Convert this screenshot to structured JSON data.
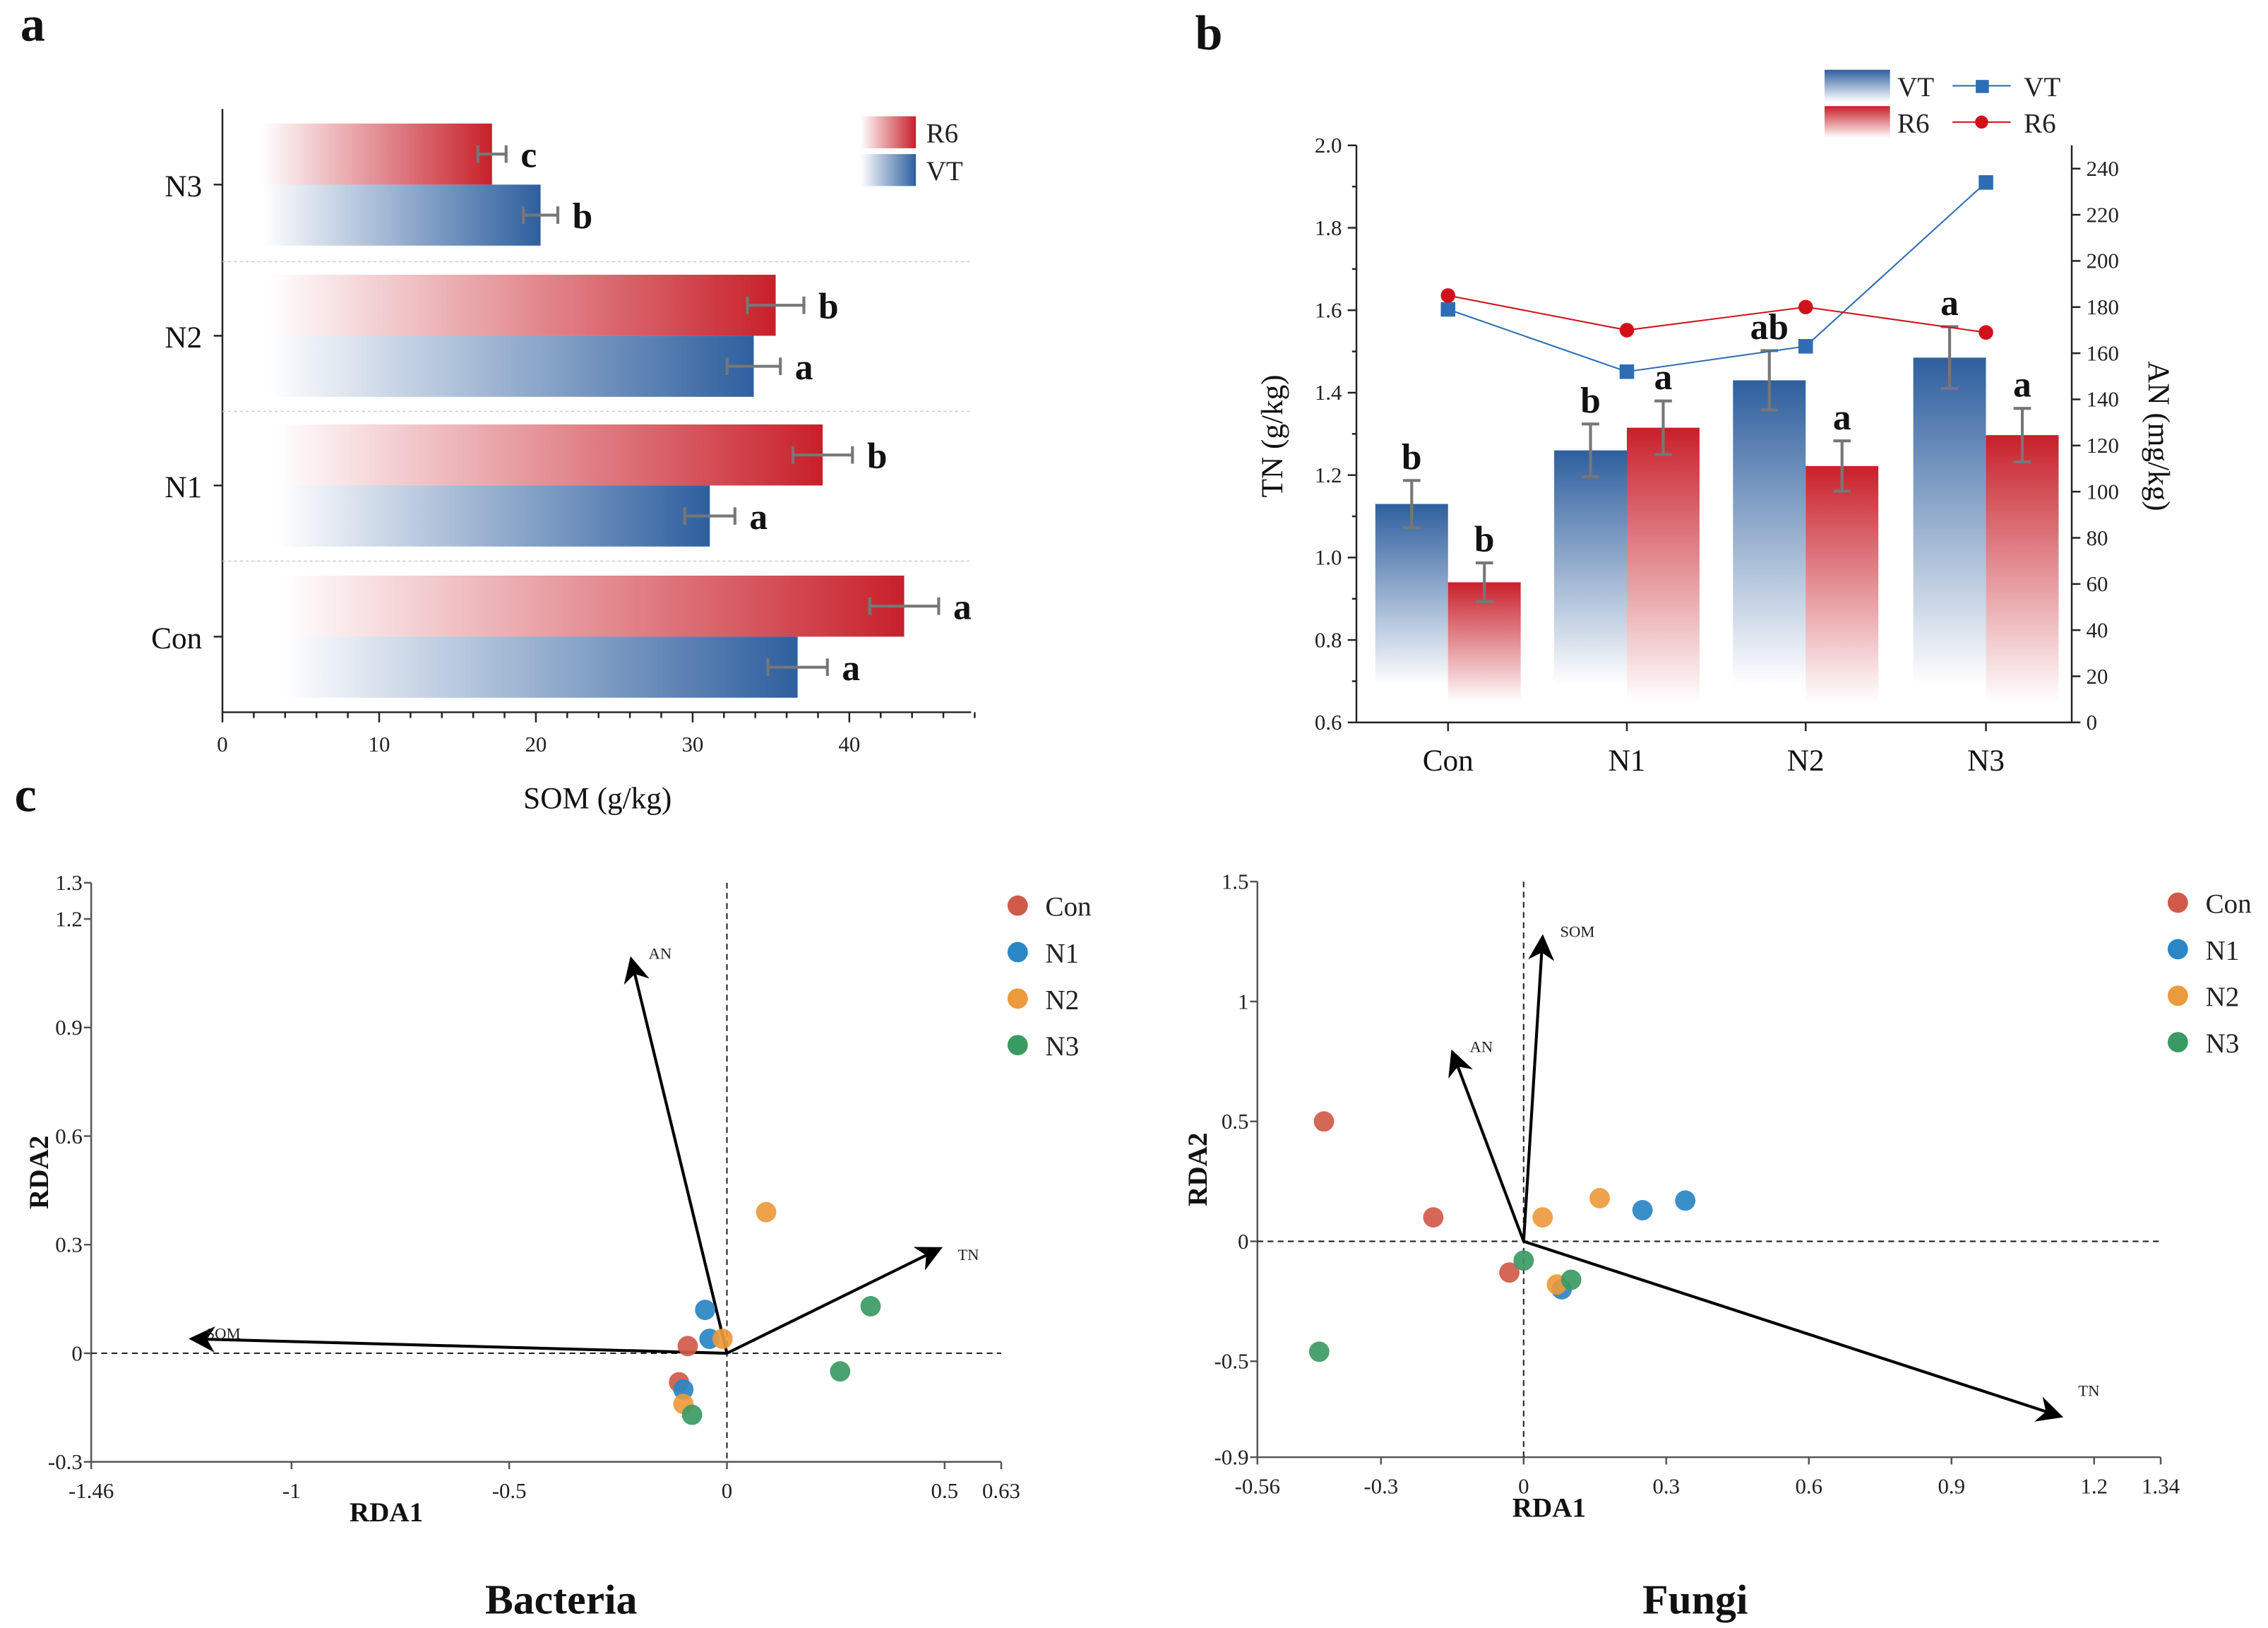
{
  "chart_data": [
    {
      "panel": "a",
      "type": "bar",
      "orientation": "horizontal",
      "xlabel": "SOM (g/kg)",
      "xlim": [
        0,
        48
      ],
      "xticks": [
        0,
        10,
        20,
        30,
        40
      ],
      "categories": [
        "Con",
        "N1",
        "N2",
        "N3"
      ],
      "legend": [
        "R6",
        "VT"
      ],
      "legend_position": "top-right",
      "series": [
        {
          "name": "R6",
          "color": "#c8202a",
          "values": [
            43.5,
            38.3,
            35.3,
            17.2
          ],
          "errors": [
            2.2,
            1.9,
            1.8,
            0.9
          ],
          "letters": [
            "a",
            "b",
            "b",
            "c"
          ]
        },
        {
          "name": "VT",
          "color": "#2e5f9e",
          "values": [
            36.7,
            31.1,
            33.9,
            20.3
          ],
          "errors": [
            1.9,
            1.6,
            1.7,
            1.1
          ],
          "letters": [
            "a",
            "a",
            "a",
            "b"
          ]
        }
      ]
    },
    {
      "panel": "b",
      "type": "bar+line",
      "categories": [
        "Con",
        "N1",
        "N2",
        "N3"
      ],
      "ylabel": "TN (g/kg)",
      "ylim": [
        0.6,
        2.0
      ],
      "yticks": [
        "0.6",
        "0.8",
        "1.0",
        "1.2",
        "1.4",
        "1.6",
        "1.8",
        "2.0"
      ],
      "y2label": "AN (mg/kg)",
      "y2lim": [
        0,
        250
      ],
      "y2ticks": [
        "0",
        "20",
        "40",
        "60",
        "80",
        "100",
        "120",
        "140",
        "160",
        "180",
        "200",
        "220",
        "240"
      ],
      "legend_position": "top-right",
      "bars": [
        {
          "name": "VT",
          "color": "#2e5f9e",
          "values": [
            1.13,
            1.26,
            1.43,
            1.485
          ],
          "errors": [
            0.057,
            0.064,
            0.072,
            0.075
          ],
          "letters": [
            "b",
            "b",
            "ab",
            "a"
          ]
        },
        {
          "name": "R6",
          "color": "#c8202a",
          "values": [
            0.94,
            1.315,
            1.222,
            1.297
          ],
          "errors": [
            0.047,
            0.065,
            0.061,
            0.065
          ],
          "letters": [
            "b",
            "a",
            "a",
            "a"
          ]
        }
      ],
      "lines": [
        {
          "name": "VT",
          "color": "#2e6db3",
          "marker": "square",
          "values": [
            179,
            152,
            163,
            234
          ]
        },
        {
          "name": "R6",
          "color": "#d0111b",
          "marker": "circle",
          "values": [
            185,
            170,
            180,
            169
          ]
        }
      ]
    },
    {
      "panel": "c",
      "title": "Bacteria",
      "type": "scatter",
      "xlabel": "RDA1",
      "ylabel": "RDA2",
      "xlim": [
        -1.46,
        0.63
      ],
      "ylim": [
        -0.3,
        1.3
      ],
      "xticks": [
        "-1.46",
        "-1",
        "-0.5",
        "0",
        "0.5",
        "0.63"
      ],
      "yticks": [
        "-0.3",
        "0",
        "0.3",
        "0.6",
        "0.9",
        "1.2",
        "1.3"
      ],
      "legend_position": "top-right",
      "groups": [
        {
          "name": "Con",
          "color": "#d05a4a",
          "points": [
            [
              -0.11,
              -0.08
            ],
            [
              -0.09,
              0.02
            ]
          ]
        },
        {
          "name": "N1",
          "color": "#2a86c4",
          "points": [
            [
              -0.05,
              0.12
            ],
            [
              -0.04,
              0.04
            ],
            [
              -0.1,
              -0.1
            ]
          ]
        },
        {
          "name": "N2",
          "color": "#eb9a3c",
          "points": [
            [
              0.09,
              0.39
            ],
            [
              -0.01,
              0.04
            ],
            [
              -0.1,
              -0.14
            ]
          ]
        },
        {
          "name": "N3",
          "color": "#3a9a63",
          "points": [
            [
              0.33,
              0.13
            ],
            [
              0.26,
              -0.05
            ],
            [
              -0.08,
              -0.17
            ]
          ]
        }
      ],
      "vectors": [
        {
          "name": "AN",
          "x": -0.22,
          "y": 1.09
        },
        {
          "name": "SOM",
          "x": -1.23,
          "y": 0.04
        },
        {
          "name": "TN",
          "x": 0.49,
          "y": 0.29
        }
      ]
    },
    {
      "panel": "c",
      "title": "Fungi",
      "type": "scatter",
      "xlabel": "RDA1",
      "ylabel": "RDA2",
      "xlim": [
        -0.56,
        1.34
      ],
      "ylim": [
        -0.9,
        1.5
      ],
      "xticks": [
        "-0.56",
        "-0.3",
        "0",
        "0.3",
        "0.6",
        "0.9",
        "1.2",
        "1.34"
      ],
      "yticks": [
        "-0.9",
        "-0.5",
        "0",
        "0.5",
        "1",
        "1.5"
      ],
      "legend_position": "top-right",
      "groups": [
        {
          "name": "Con",
          "color": "#d05a4a",
          "points": [
            [
              -0.42,
              0.5
            ],
            [
              -0.19,
              0.1
            ],
            [
              -0.03,
              -0.13
            ]
          ]
        },
        {
          "name": "N1",
          "color": "#2a86c4",
          "points": [
            [
              0.25,
              0.13
            ],
            [
              0.34,
              0.17
            ],
            [
              0.08,
              -0.2
            ]
          ]
        },
        {
          "name": "N2",
          "color": "#eb9a3c",
          "points": [
            [
              0.04,
              0.1
            ],
            [
              0.16,
              0.18
            ],
            [
              0.07,
              -0.18
            ]
          ]
        },
        {
          "name": "N3",
          "color": "#3a9a63",
          "points": [
            [
              -0.0,
              -0.08
            ],
            [
              0.1,
              -0.16
            ],
            [
              -0.43,
              -0.46
            ]
          ]
        }
      ],
      "vectors": [
        {
          "name": "SOM",
          "x": 0.04,
          "y": 1.27
        },
        {
          "name": "AN",
          "x": -0.15,
          "y": 0.79
        },
        {
          "name": "TN",
          "x": 1.13,
          "y": -0.73
        }
      ]
    }
  ],
  "panel_labels": {
    "a": "a",
    "b": "b",
    "c": "c"
  }
}
